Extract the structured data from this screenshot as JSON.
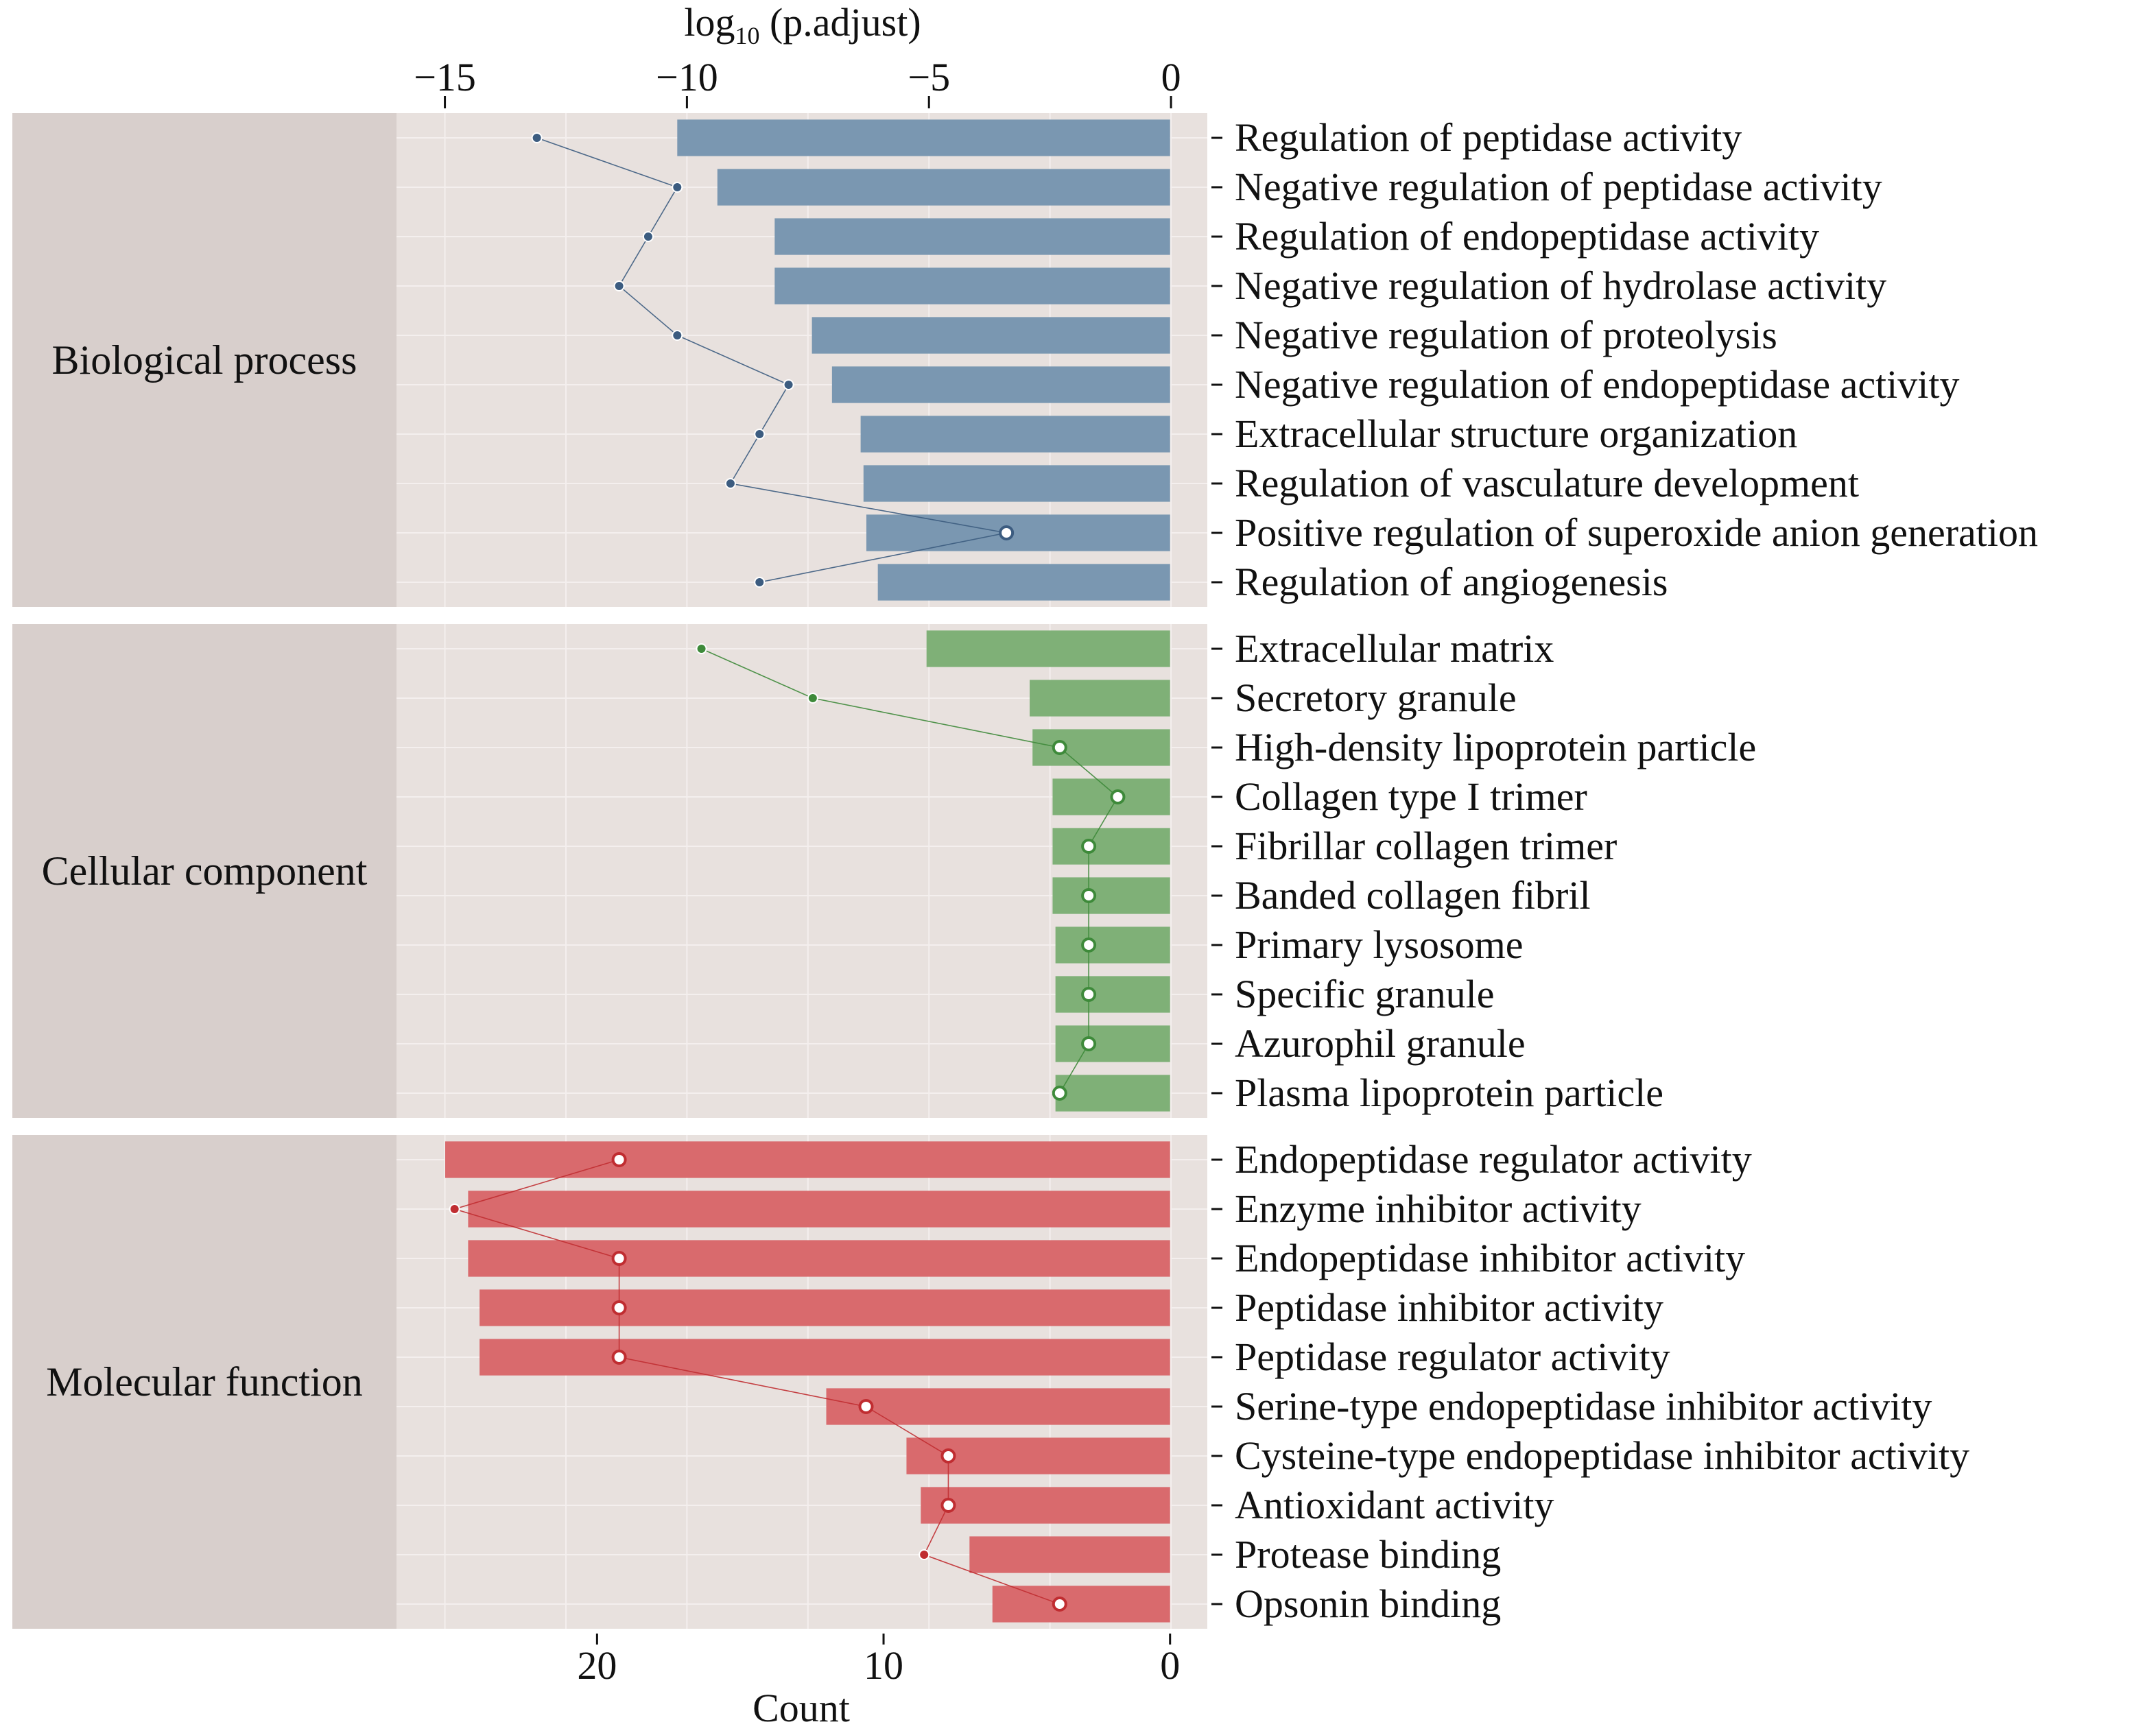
{
  "chart_data": {
    "type": "bar",
    "top_axis": {
      "label_main": "log",
      "label_sub": "10",
      "label_rest": " (p.adjust)",
      "ticks": [
        -15,
        -10,
        -5,
        0
      ],
      "tick_labels": [
        "−15",
        "−10",
        "−5",
        "0"
      ],
      "range": [
        -16.0,
        0.75
      ]
    },
    "bottom_axis": {
      "label": "Count",
      "ticks": [
        20,
        10,
        0
      ],
      "tick_labels": [
        "20",
        "10",
        "0"
      ],
      "range": [
        27,
        -1.3
      ]
    },
    "colors": {
      "panel_bg": "#e8e1de",
      "strip_bg": "#d8cfcc",
      "grid": "#f4efee"
    },
    "groups": [
      {
        "name": "Biological process",
        "bar_color": "#7a97b1",
        "dot_color": "#3c5c80",
        "terms": [
          {
            "label": "Regulation of peptidase activity",
            "count": 17.2,
            "log10_padj": -13.1
          },
          {
            "label": "Negative regulation of peptidase activity",
            "count": 15.8,
            "log10_padj": -10.2
          },
          {
            "label": "Regulation of endopeptidase activity",
            "count": 13.8,
            "log10_padj": -10.8
          },
          {
            "label": "Negative regulation of hydrolase activity",
            "count": 13.8,
            "log10_padj": -11.4
          },
          {
            "label": "Negative regulation of proteolysis",
            "count": 12.5,
            "log10_padj": -10.2
          },
          {
            "label": "Negative regulation of endopeptidase activity",
            "count": 11.8,
            "log10_padj": -7.9
          },
          {
            "label": "Extracellular structure organization",
            "count": 10.8,
            "log10_padj": -8.5
          },
          {
            "label": "Regulation of vasculature development",
            "count": 10.7,
            "log10_padj": -9.1
          },
          {
            "label": "Positive regulation of superoxide anion generation",
            "count": 10.6,
            "log10_padj": -3.4
          },
          {
            "label": "Regulation of angiogenesis",
            "count": 10.2,
            "log10_padj": -8.5
          }
        ]
      },
      {
        "name": "Cellular component",
        "bar_color": "#7fb077",
        "dot_color": "#3e8a3a",
        "terms": [
          {
            "label": "Extracellular matrix",
            "count": 8.5,
            "log10_padj": -9.7
          },
          {
            "label": "Secretory granule",
            "count": 4.9,
            "log10_padj": -7.4
          },
          {
            "label": "High-density lipoprotein particle",
            "count": 4.8,
            "log10_padj": -2.3
          },
          {
            "label": "Collagen type I trimer",
            "count": 4.1,
            "log10_padj": -1.1
          },
          {
            "label": "Fibrillar collagen trimer",
            "count": 4.1,
            "log10_padj": -1.7
          },
          {
            "label": "Banded collagen fibril",
            "count": 4.1,
            "log10_padj": -1.7
          },
          {
            "label": "Primary lysosome",
            "count": 4.0,
            "log10_padj": -1.7
          },
          {
            "label": "Specific granule",
            "count": 4.0,
            "log10_padj": -1.7
          },
          {
            "label": "Azurophil granule",
            "count": 4.0,
            "log10_padj": -1.7
          },
          {
            "label": "Plasma lipoprotein particle",
            "count": 4.0,
            "log10_padj": -2.3
          }
        ]
      },
      {
        "name": "Molecular function",
        "bar_color": "#d96a6d",
        "dot_color": "#c02d31",
        "terms": [
          {
            "label": "Endopeptidase regulator activity",
            "count": 25.3,
            "log10_padj": -11.4
          },
          {
            "label": "Enzyme inhibitor activity",
            "count": 24.5,
            "log10_padj": -14.8
          },
          {
            "label": "Endopeptidase inhibitor activity",
            "count": 24.5,
            "log10_padj": -11.4
          },
          {
            "label": "Peptidase inhibitor activity",
            "count": 24.1,
            "log10_padj": -11.4
          },
          {
            "label": "Peptidase regulator activity",
            "count": 24.1,
            "log10_padj": -11.4
          },
          {
            "label": "Serine-type endopeptidase inhibitor activity",
            "count": 12.0,
            "log10_padj": -6.3
          },
          {
            "label": "Cysteine-type endopeptidase inhibitor activity",
            "count": 9.2,
            "log10_padj": -4.6
          },
          {
            "label": "Antioxidant activity",
            "count": 8.7,
            "log10_padj": -4.6
          },
          {
            "label": "Protease binding",
            "count": 7.0,
            "log10_padj": -5.1
          },
          {
            "label": "Opsonin binding",
            "count": 6.2,
            "log10_padj": -2.3
          }
        ]
      }
    ]
  }
}
